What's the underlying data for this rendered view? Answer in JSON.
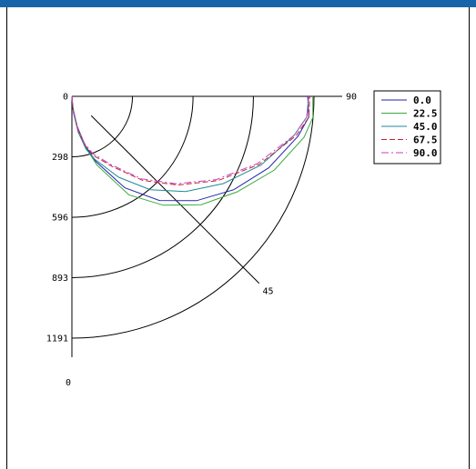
{
  "chart_data": {
    "type": "polar-quadrant",
    "radial_ticks": [
      "0",
      "298",
      "596",
      "893",
      "1191"
    ],
    "radial_tick_values": [
      0,
      298,
      596,
      893,
      1191
    ],
    "angle_labels": {
      "start": "0",
      "end": "90",
      "diagonal": "45"
    },
    "angle_label_values": [
      0,
      45,
      90
    ],
    "r_max": 1191,
    "grid": true,
    "legend_position": "top-right",
    "series": [
      {
        "name": "0.0",
        "color": "#2323b0",
        "dash": "none",
        "points": [
          [
            0,
            0
          ],
          [
            5,
            60
          ],
          [
            10,
            150
          ],
          [
            15,
            250
          ],
          [
            20,
            340
          ],
          [
            30,
            520
          ],
          [
            40,
            670
          ],
          [
            50,
            800
          ],
          [
            60,
            920
          ],
          [
            70,
            1030
          ],
          [
            80,
            1130
          ],
          [
            85,
            1170
          ],
          [
            90,
            1160
          ]
        ]
      },
      {
        "name": "22.5",
        "color": "#3aaa3a",
        "dash": "none",
        "points": [
          [
            0,
            0
          ],
          [
            5,
            70
          ],
          [
            10,
            160
          ],
          [
            15,
            260
          ],
          [
            20,
            360
          ],
          [
            30,
            560
          ],
          [
            40,
            700
          ],
          [
            50,
            830
          ],
          [
            60,
            940
          ],
          [
            70,
            1060
          ],
          [
            80,
            1160
          ],
          [
            85,
            1190
          ],
          [
            90,
            1185
          ]
        ]
      },
      {
        "name": "45.0",
        "color": "#1e8a9a",
        "dash": "none",
        "points": [
          [
            0,
            0
          ],
          [
            5,
            80
          ],
          [
            10,
            180
          ],
          [
            15,
            270
          ],
          [
            20,
            330
          ],
          [
            30,
            460
          ],
          [
            40,
            600
          ],
          [
            50,
            730
          ],
          [
            60,
            860
          ],
          [
            70,
            990
          ],
          [
            80,
            1110
          ],
          [
            85,
            1160
          ],
          [
            90,
            1165
          ]
        ]
      },
      {
        "name": "67.5",
        "color": "#cc2233",
        "dash": "6,3",
        "points": [
          [
            0,
            0
          ],
          [
            5,
            70
          ],
          [
            10,
            170
          ],
          [
            15,
            250
          ],
          [
            20,
            310
          ],
          [
            30,
            400
          ],
          [
            40,
            540
          ],
          [
            50,
            680
          ],
          [
            60,
            830
          ],
          [
            70,
            980
          ],
          [
            80,
            1120
          ],
          [
            85,
            1170
          ],
          [
            90,
            1170
          ]
        ]
      },
      {
        "name": "90.0",
        "color": "#c040c0",
        "dash": "8,3,2,3",
        "points": [
          [
            0,
            0
          ],
          [
            5,
            70
          ],
          [
            10,
            160
          ],
          [
            15,
            240
          ],
          [
            20,
            300
          ],
          [
            30,
            390
          ],
          [
            40,
            530
          ],
          [
            50,
            670
          ],
          [
            60,
            820
          ],
          [
            70,
            970
          ],
          [
            80,
            1110
          ],
          [
            85,
            1160
          ],
          [
            90,
            1165
          ]
        ]
      }
    ]
  }
}
